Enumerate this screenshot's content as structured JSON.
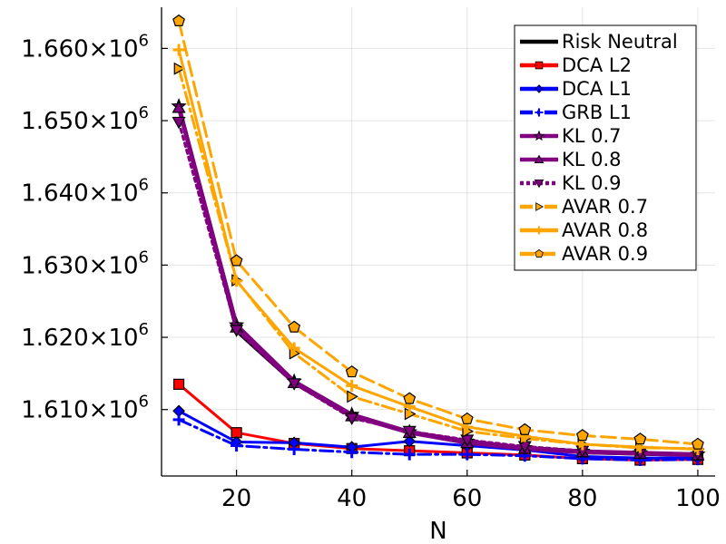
{
  "chart_data": {
    "type": "line",
    "title": "",
    "xlabel": "N",
    "ylabel": "",
    "x": [
      10,
      20,
      30,
      40,
      50,
      60,
      70,
      80,
      90,
      100
    ],
    "xlim": [
      7,
      103
    ],
    "ylim": [
      1600800,
      1665700
    ],
    "xticks": [
      20,
      40,
      60,
      80,
      100
    ],
    "xtick_labels": [
      "20",
      "40",
      "60",
      "80",
      "100"
    ],
    "yticks": [
      1610000,
      1620000,
      1630000,
      1640000,
      1650000,
      1660000
    ],
    "ytick_labels": [
      "1.610×10",
      "1.620×10",
      "1.630×10",
      "1.640×10",
      "1.650×10",
      "1.660×10"
    ],
    "ytick_exponent": "6",
    "grid": true,
    "legend_position": "top-right",
    "series": [
      {
        "name": "Risk Neutral",
        "color": "#000000",
        "dash": "solid",
        "width": 3,
        "marker": "none",
        "values": [
          1652000,
          1620800,
          1613600,
          1609000,
          1606800,
          1605300,
          1604600,
          1604000,
          1603800,
          1603600
        ]
      },
      {
        "name": "DCA L2",
        "color": "#ff0000",
        "dash": "solid",
        "width": 3,
        "marker": "square",
        "values": [
          1613500,
          1606800,
          1605300,
          1604600,
          1604300,
          1604000,
          1603700,
          1603200,
          1603000,
          1603100
        ]
      },
      {
        "name": "DCA L1",
        "color": "#0000ff",
        "dash": "solid",
        "width": 3,
        "marker": "diamond",
        "values": [
          1609800,
          1605500,
          1605400,
          1604800,
          1605600,
          1605000,
          1604400,
          1603500,
          1603300,
          1603300
        ]
      },
      {
        "name": "GRB L1",
        "color": "#0000ff",
        "dash": "dashdot",
        "width": 3,
        "marker": "plus",
        "values": [
          1608600,
          1605000,
          1604500,
          1604100,
          1603800,
          1603800,
          1603600,
          1603200,
          1603000,
          1603100
        ]
      },
      {
        "name": "KL 0.7",
        "color": "#800080",
        "dash": "solid",
        "width": 4.5,
        "marker": "star",
        "values": [
          1652000,
          1621700,
          1613900,
          1609300,
          1606900,
          1605600,
          1604700,
          1604200,
          1604000,
          1603800
        ]
      },
      {
        "name": "KL 0.8",
        "color": "#800080",
        "dash": "solid",
        "width": 4.5,
        "marker": "triangle",
        "values": [
          1651800,
          1621400,
          1613700,
          1609100,
          1606800,
          1605400,
          1604600,
          1604100,
          1603900,
          1603700
        ]
      },
      {
        "name": "KL 0.9",
        "color": "#800080",
        "dash": "dot",
        "width": 3,
        "marker": "triangledown",
        "values": [
          1649800,
          1621000,
          1613600,
          1608800,
          1607000,
          1605800,
          1604900,
          1604300,
          1604000,
          1603900
        ]
      },
      {
        "name": "AVAR 0.7",
        "color": "#ffa500",
        "dash": "dashdot",
        "width": 3,
        "marker": "triangleright",
        "values": [
          1657200,
          1627900,
          1617800,
          1611800,
          1609400,
          1607000,
          1606000,
          1605200,
          1604700,
          1604600
        ]
      },
      {
        "name": "AVAR 0.8",
        "color": "#ffa500",
        "dash": "solid",
        "width": 3,
        "marker": "plus",
        "values": [
          1659800,
          1627800,
          1618500,
          1613300,
          1610400,
          1607600,
          1606300,
          1605200,
          1604800,
          1604500
        ]
      },
      {
        "name": "AVAR 0.9",
        "color": "#ffa500",
        "dash": "dash",
        "width": 3,
        "marker": "pentagon",
        "values": [
          1663800,
          1630600,
          1621400,
          1615200,
          1611500,
          1608700,
          1607200,
          1606400,
          1605900,
          1605200
        ]
      }
    ]
  }
}
